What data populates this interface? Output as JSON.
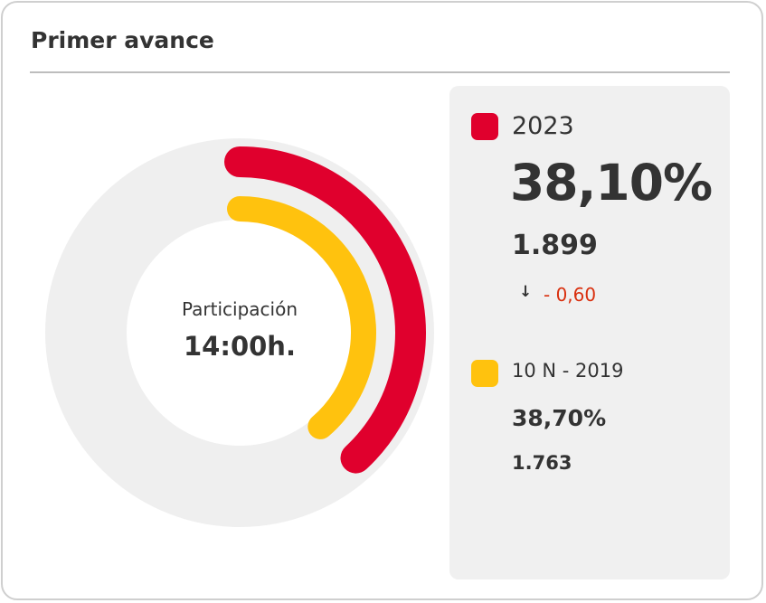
{
  "card": {
    "title": "Primer avance"
  },
  "center": {
    "label": "Participación",
    "time": "14:00h."
  },
  "legend": {
    "current": {
      "label": "2023",
      "percent": "38,10%",
      "votes": "1.899",
      "delta": "- 0,60",
      "delta_icon": "arrow-down-icon",
      "color": "#e0002d"
    },
    "previous": {
      "label": "10 N - 2019",
      "percent": "38,70%",
      "votes": "1.763",
      "color": "#ffc20e"
    },
    "delta_color": "#d9300f"
  },
  "chart_data": {
    "type": "radial-bar",
    "max": 100,
    "series": [
      {
        "name": "2023",
        "value": 38.1,
        "color": "#e0002d"
      },
      {
        "name": "10 N - 2019",
        "value": 38.7,
        "color": "#ffc20e"
      }
    ],
    "track_color": "#efefef"
  }
}
